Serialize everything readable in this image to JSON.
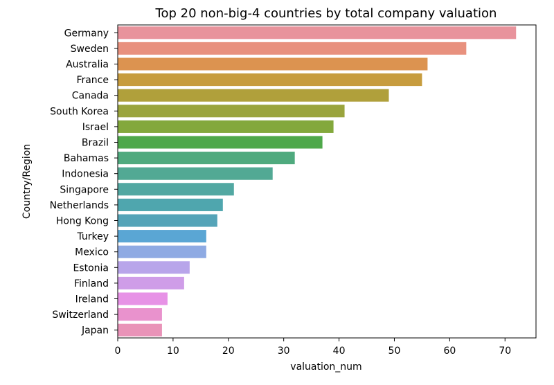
{
  "chart_data": {
    "type": "bar",
    "orientation": "horizontal",
    "title": "Top 20 non-big-4 countries by total company valuation",
    "xlabel": "valuation_num",
    "ylabel": "Country/Region",
    "xlim": [
      0,
      75.6
    ],
    "xticks": [
      0,
      10,
      20,
      30,
      40,
      50,
      60,
      70
    ],
    "grid": false,
    "categories": [
      "Germany",
      "Sweden",
      "Australia",
      "France",
      "Canada",
      "South Korea",
      "Israel",
      "Brazil",
      "Bahamas",
      "Indonesia",
      "Singapore",
      "Netherlands",
      "Hong Kong",
      "Turkey",
      "Mexico",
      "Estonia",
      "Finland",
      "Ireland",
      "Switzerland",
      "Japan"
    ],
    "values": [
      72,
      63,
      56,
      55,
      49,
      41,
      39,
      37,
      32,
      28,
      21,
      19,
      18,
      16,
      16,
      13,
      12,
      9,
      8,
      8
    ],
    "colors": [
      "#e8939c",
      "#e8917e",
      "#dc9350",
      "#c79c3e",
      "#b0a03b",
      "#9aa43d",
      "#83a83c",
      "#4ea84a",
      "#4faa7e",
      "#52a994",
      "#52a8a2",
      "#4fa6ae",
      "#55a4b8",
      "#5aa6d4",
      "#8eaae3",
      "#b8a5ea",
      "#cf9de8",
      "#e792e6",
      "#e992cd",
      "#e993b8"
    ]
  }
}
